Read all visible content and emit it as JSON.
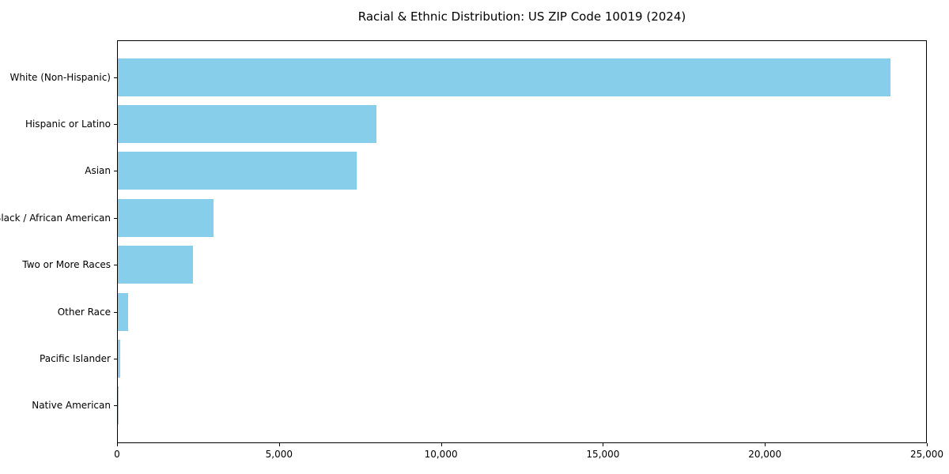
{
  "chart_data": {
    "type": "bar",
    "orientation": "horizontal",
    "title": "Racial & Ethnic Distribution: US ZIP Code 10019 (2024)",
    "categories": [
      "White (Non-Hispanic)",
      "Hispanic or Latino",
      "Asian",
      "Black / African American",
      "Two or More Races",
      "Other Race",
      "Pacific Islander",
      "Native American"
    ],
    "values": [
      23900,
      8000,
      7380,
      2950,
      2330,
      320,
      85,
      10
    ],
    "xlabel": "",
    "ylabel": "",
    "xlim": [
      0,
      25000
    ],
    "x_ticks": [
      0,
      5000,
      10000,
      15000,
      20000,
      25000
    ],
    "x_tick_labels": [
      "0",
      "5,000",
      "10,000",
      "15,000",
      "20,000",
      "25,000"
    ],
    "bar_color": "#87CEEB",
    "frame_color": "#000000",
    "background_color": "#ffffff",
    "grid": false,
    "legend": "none"
  }
}
